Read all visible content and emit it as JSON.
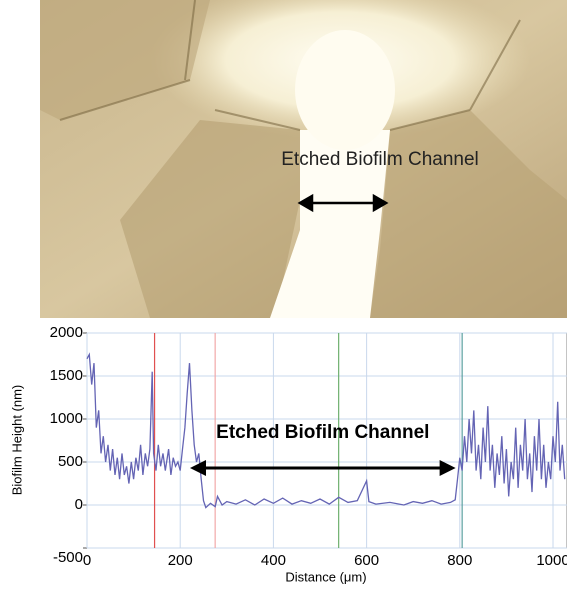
{
  "photo": {
    "annotation": "Etched Biofilm Channel"
  },
  "chart_data": {
    "type": "line",
    "ylabel": "Biofilm Height (nm)",
    "xlabel": "Distance (μm)",
    "annotation": {
      "text": "Etched Biofilm Channel",
      "arrow": {
        "from": 221,
        "to": 791,
        "y": 430
      }
    },
    "xlim": [
      0,
      1030
    ],
    "xticks": [
      0,
      200,
      400,
      600,
      800,
      1000
    ],
    "ylim": [
      -500,
      2000
    ],
    "yticks": [
      -500,
      0,
      500,
      1000,
      1500,
      2000
    ],
    "grid": true,
    "cursor_lines": [
      {
        "x": 145,
        "color": "#e05050"
      },
      {
        "x": 275,
        "color": "#f2a8a8"
      },
      {
        "x": 540,
        "color": "#6fb06f"
      },
      {
        "x": 805,
        "color": "#5aa0a0"
      }
    ],
    "series": [
      {
        "color": "#6464b4",
        "x": [
          0,
          5,
          10,
          15,
          20,
          25,
          30,
          35,
          40,
          45,
          50,
          55,
          60,
          65,
          70,
          75,
          80,
          85,
          90,
          95,
          100,
          105,
          110,
          115,
          120,
          125,
          130,
          135,
          140,
          143,
          148,
          153,
          158,
          163,
          168,
          175,
          180,
          185,
          190,
          195,
          200,
          205,
          210,
          215,
          220,
          225,
          230,
          235,
          240,
          245,
          250,
          255,
          265,
          275,
          280,
          290,
          300,
          320,
          340,
          360,
          380,
          400,
          420,
          440,
          460,
          480,
          500,
          520,
          540,
          560,
          580,
          600,
          605,
          620,
          650,
          680,
          700,
          720,
          740,
          760,
          780,
          790,
          795,
          800,
          805,
          810,
          815,
          820,
          825,
          830,
          835,
          840,
          845,
          850,
          855,
          860,
          865,
          870,
          875,
          880,
          885,
          890,
          895,
          900,
          905,
          910,
          915,
          920,
          925,
          930,
          935,
          940,
          945,
          950,
          955,
          960,
          965,
          970,
          975,
          980,
          985,
          990,
          995,
          1000,
          1005,
          1010,
          1015,
          1020,
          1025
        ],
        "values": [
          1700,
          1750,
          1400,
          1650,
          900,
          1100,
          600,
          800,
          500,
          700,
          400,
          650,
          350,
          550,
          300,
          600,
          350,
          450,
          250,
          500,
          300,
          550,
          400,
          700,
          350,
          600,
          450,
          650,
          1550,
          600,
          400,
          700,
          450,
          600,
          400,
          650,
          350,
          550,
          450,
          500,
          400,
          650,
          900,
          1300,
          1650,
          1100,
          700,
          500,
          600,
          300,
          50,
          -30,
          20,
          -20,
          100,
          0,
          40,
          10,
          60,
          0,
          70,
          20,
          80,
          10,
          50,
          20,
          70,
          10,
          90,
          30,
          50,
          280,
          40,
          10,
          30,
          0,
          40,
          20,
          50,
          10,
          30,
          60,
          300,
          550,
          400,
          800,
          500,
          1000,
          600,
          1100,
          400,
          700,
          300,
          900,
          500,
          1150,
          400,
          700,
          200,
          600,
          350,
          800,
          250,
          650,
          100,
          500,
          300,
          900,
          200,
          700,
          400,
          1000,
          300,
          600,
          150,
          800,
          400,
          1000,
          300,
          700,
          200,
          500,
          300,
          800,
          500,
          1200,
          400,
          700,
          300
        ]
      }
    ]
  }
}
